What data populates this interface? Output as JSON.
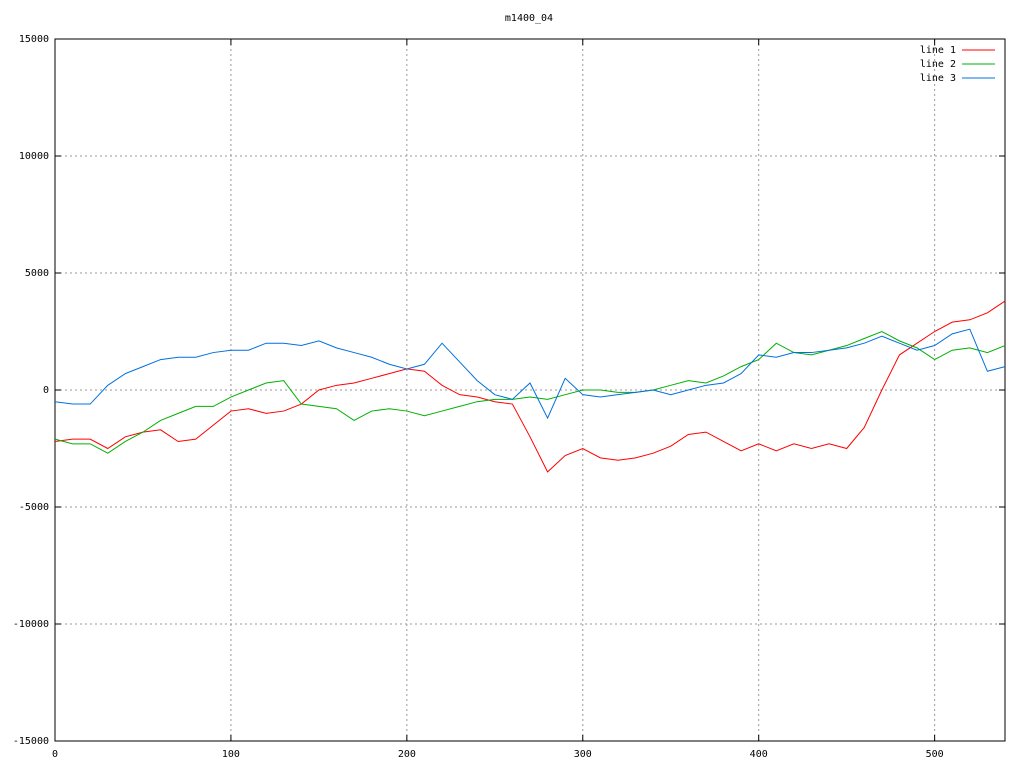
{
  "chart_data": {
    "type": "line",
    "title": "m1400_04",
    "x": [
      0,
      10,
      20,
      30,
      40,
      50,
      60,
      70,
      80,
      90,
      100,
      110,
      120,
      130,
      140,
      150,
      160,
      170,
      180,
      190,
      200,
      210,
      220,
      230,
      240,
      250,
      260,
      270,
      280,
      290,
      300,
      310,
      320,
      330,
      340,
      350,
      360,
      370,
      380,
      390,
      400,
      410,
      420,
      430,
      440,
      450,
      460,
      470,
      480,
      490,
      500,
      510,
      520,
      530,
      540
    ],
    "series": [
      {
        "name": "line 1",
        "color": "#ff0000",
        "values": [
          -2200,
          -2100,
          -2100,
          -2500,
          -2000,
          -1800,
          -1700,
          -2200,
          -2100,
          -1500,
          -900,
          -800,
          -1000,
          -900,
          -600,
          0,
          200,
          300,
          500,
          700,
          900,
          800,
          200,
          -200,
          -300,
          -500,
          -600,
          -2000,
          -3500,
          -2800,
          -2500,
          -2900,
          -3000,
          -2900,
          -2700,
          -2400,
          -1900,
          -1800,
          -2200,
          -2600,
          -2300,
          -2600,
          -2300,
          -2500,
          -2300,
          -2500,
          -1600,
          0,
          1500,
          2000,
          2500,
          2900,
          3000,
          3300,
          3800
        ]
      },
      {
        "name": "line 2",
        "color": "#00b000",
        "values": [
          -2100,
          -2300,
          -2300,
          -2700,
          -2200,
          -1800,
          -1300,
          -1000,
          -700,
          -700,
          -300,
          0,
          300,
          400,
          -600,
          -700,
          -800,
          -1300,
          -900,
          -800,
          -900,
          -1100,
          -900,
          -700,
          -500,
          -400,
          -400,
          -300,
          -400,
          -200,
          0,
          0,
          -100,
          -100,
          0,
          200,
          400,
          300,
          600,
          1000,
          1300,
          2000,
          1600,
          1500,
          1700,
          1900,
          2200,
          2500,
          2100,
          1800,
          1300,
          1700,
          1800,
          1600,
          1900
        ]
      },
      {
        "name": "line 3",
        "color": "#0070e0",
        "values": [
          -500,
          -600,
          -600,
          200,
          700,
          1000,
          1300,
          1400,
          1400,
          1600,
          1700,
          1700,
          2000,
          2000,
          1900,
          2100,
          1800,
          1600,
          1400,
          1100,
          900,
          1100,
          2000,
          1200,
          400,
          -200,
          -400,
          300,
          -1200,
          500,
          -200,
          -300,
          -200,
          -100,
          0,
          -200,
          0,
          200,
          300,
          700,
          1500,
          1400,
          1600,
          1600,
          1700,
          1800,
          2000,
          2300,
          2000,
          1700,
          1900,
          2400,
          2600,
          800,
          1000
        ]
      }
    ],
    "xlim": [
      0,
      540
    ],
    "ylim": [
      -15000,
      15000
    ],
    "xticks": [
      0,
      100,
      200,
      300,
      400,
      500
    ],
    "yticks": [
      -15000,
      -10000,
      -5000,
      0,
      5000,
      10000,
      15000
    ],
    "grid": true,
    "legend": "top-right"
  }
}
